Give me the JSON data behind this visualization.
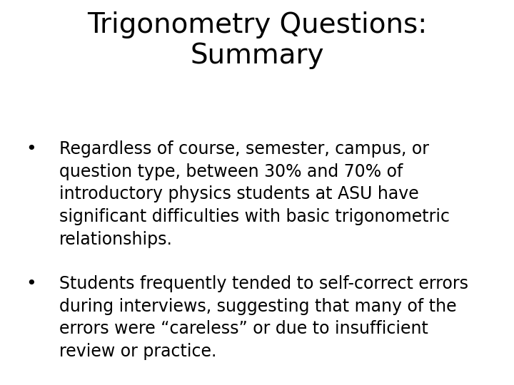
{
  "title_line1": "Trigonometry Questions:",
  "title_line2": "Summary",
  "title_fontsize": 28,
  "title_color": "#000000",
  "background_color": "#ffffff",
  "bullet1_lines": [
    "Regardless of course, semester, campus, or",
    "question type, between 30% and 70% of",
    "introductory physics students at ASU have",
    "significant difficulties with basic trigonometric",
    "relationships."
  ],
  "bullet2_lines": [
    "Students frequently tended to self-correct errors",
    "during interviews, suggesting that many of the",
    "errors were “careless” or due to insufficient",
    "review or practice."
  ],
  "bullet_fontsize": 17,
  "bullet_color": "#000000",
  "bullet_symbol": "•",
  "font_family": "DejaVu Sans"
}
